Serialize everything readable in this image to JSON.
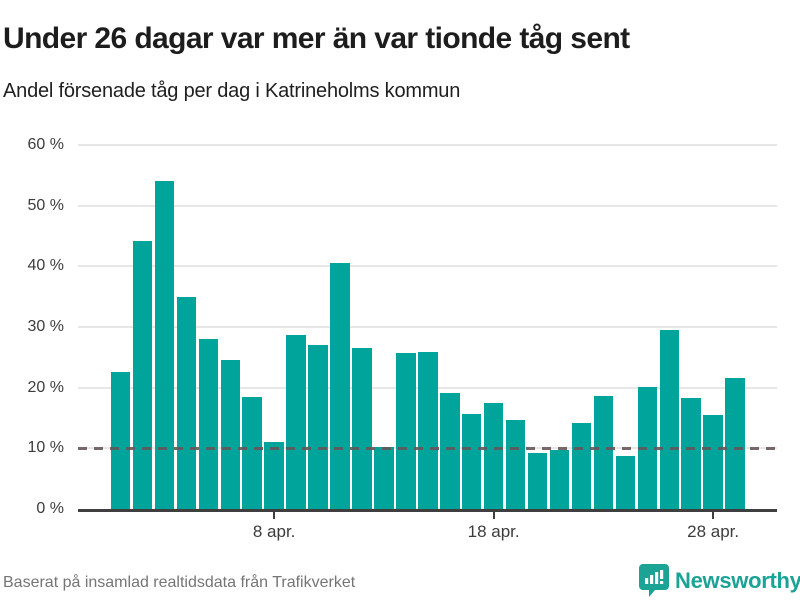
{
  "header": {
    "title": "Under 26 dagar var mer än var tionde tåg sent",
    "subtitle": "Andel försenade tåg per dag i Katrineholms kommun"
  },
  "footer": {
    "source": "Baserat på insamlad realtidsdata från Trafikverket",
    "brand": "Newsworthy"
  },
  "colors": {
    "bar": "#00a49b",
    "brand": "#1ba396",
    "grid": "#e7e7e7",
    "axis": "#3f3f3f",
    "reference_line": "#685454",
    "text": "#1d1d1d",
    "muted_text": "#757575"
  },
  "icons": {
    "brand_logo": "newsworthy-map-pin-barchart-icon"
  },
  "chart_data": {
    "type": "bar",
    "title": "Under 26 dagar var mer än var tionde tåg sent",
    "subtitle": "Andel försenade tåg per dag i Katrineholms kommun",
    "unit": "%",
    "grid": "horizontal",
    "legend": "none",
    "ylim": [
      0,
      60
    ],
    "categories": [
      "1 apr.",
      "2 apr.",
      "3 apr.",
      "4 apr.",
      "5 apr.",
      "6 apr.",
      "7 apr.",
      "8 apr.",
      "9 apr.",
      "10 apr.",
      "11 apr.",
      "12 apr.",
      "13 apr.",
      "14 apr.",
      "15 apr.",
      "16 apr.",
      "17 apr.",
      "18 apr.",
      "19 apr.",
      "20 apr.",
      "21 apr.",
      "22 apr.",
      "23 apr.",
      "24 apr.",
      "25 apr.",
      "26 apr.",
      "27 apr.",
      "28 apr.",
      "29 apr."
    ],
    "values": [
      22.6,
      44.2,
      54.0,
      34.9,
      28.0,
      24.6,
      18.5,
      11.1,
      28.6,
      27.0,
      40.5,
      26.6,
      10.2,
      25.7,
      25.9,
      19.2,
      15.7,
      17.5,
      14.6,
      9.2,
      9.7,
      14.1,
      18.6,
      8.7,
      20.1,
      29.5,
      18.3,
      15.5,
      21.6
    ],
    "yticks": [
      {
        "value": 0,
        "label": "0 %"
      },
      {
        "value": 10,
        "label": "10 %"
      },
      {
        "value": 20,
        "label": "20 %"
      },
      {
        "value": 30,
        "label": "30 %"
      },
      {
        "value": 40,
        "label": "40 %"
      },
      {
        "value": 50,
        "label": "50 %"
      },
      {
        "value": 60,
        "label": "60 %"
      }
    ],
    "xticks": [
      {
        "index": 7,
        "label": "8 apr."
      },
      {
        "index": 17,
        "label": "18 apr."
      },
      {
        "index": 27,
        "label": "28 apr."
      }
    ],
    "reference_line": {
      "value": 10,
      "style": "dashed"
    }
  }
}
